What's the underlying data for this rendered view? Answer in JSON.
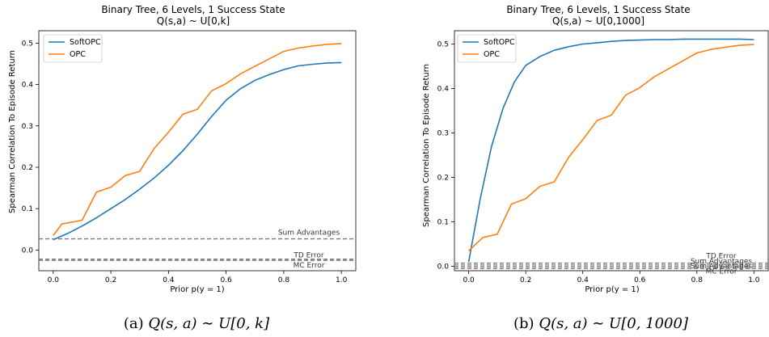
{
  "chart_data": [
    {
      "type": "line",
      "title": "Binary Tree, 6 Levels, 1 Success State",
      "subtitle": "Q(s,a) ~ U[0,k]",
      "xlabel": "Prior p(y = 1)",
      "ylabel": "Spearman Correlation To Episode Return",
      "xlim": [
        -0.05,
        1.05
      ],
      "ylim": [
        -0.05,
        0.53
      ],
      "xticks": [
        "0.0",
        "0.2",
        "0.4",
        "0.6",
        "0.8",
        "1.0"
      ],
      "yticks": [
        "0.0",
        "0.1",
        "0.2",
        "0.3",
        "0.4",
        "0.5"
      ],
      "legend_position": "top-left",
      "grid": false,
      "series": [
        {
          "name": "SoftOPC",
          "color": "#1f77b4",
          "x": [
            0.0,
            0.05,
            0.1,
            0.15,
            0.2,
            0.25,
            0.3,
            0.35,
            0.4,
            0.45,
            0.5,
            0.55,
            0.6,
            0.65,
            0.7,
            0.75,
            0.8,
            0.85,
            0.9,
            0.95,
            1.0
          ],
          "y": [
            0.025,
            0.04,
            0.058,
            0.078,
            0.1,
            0.122,
            0.147,
            0.174,
            0.205,
            0.24,
            0.28,
            0.323,
            0.362,
            0.39,
            0.41,
            0.424,
            0.436,
            0.445,
            0.449,
            0.452,
            0.453
          ]
        },
        {
          "name": "OPC",
          "color": "#ff7f0e",
          "x": [
            0.0,
            0.03,
            0.07,
            0.1,
            0.15,
            0.2,
            0.25,
            0.3,
            0.35,
            0.4,
            0.45,
            0.5,
            0.55,
            0.6,
            0.65,
            0.7,
            0.75,
            0.8,
            0.85,
            0.9,
            0.95,
            1.0
          ],
          "y": [
            0.035,
            0.063,
            0.068,
            0.072,
            0.14,
            0.152,
            0.18,
            0.19,
            0.245,
            0.285,
            0.328,
            0.34,
            0.385,
            0.402,
            0.426,
            0.444,
            0.462,
            0.48,
            0.488,
            0.493,
            0.497,
            0.499
          ]
        }
      ],
      "reference_lines": [
        {
          "label": "Sum Advantages",
          "y": 0.027
        },
        {
          "label": "TD Error",
          "y": -0.022
        },
        {
          "label": "MC Error",
          "y": -0.025
        }
      ]
    },
    {
      "type": "line",
      "title": "Binary Tree, 6 Levels, 1 Success State",
      "subtitle": "Q(s,a) ~ U[0,1000]",
      "xlabel": "Prior p(y = 1)",
      "ylabel": "Spearman Correlation To Episode Return",
      "xlim": [
        -0.05,
        1.05
      ],
      "ylim": [
        -0.01,
        0.53
      ],
      "xticks": [
        "0.0",
        "0.2",
        "0.4",
        "0.6",
        "0.8",
        "1.0"
      ],
      "yticks": [
        "0.0",
        "0.1",
        "0.2",
        "0.3",
        "0.4",
        "0.5"
      ],
      "legend_position": "top-left",
      "grid": false,
      "series": [
        {
          "name": "SoftOPC",
          "color": "#1f77b4",
          "x": [
            0.0,
            0.04,
            0.08,
            0.12,
            0.16,
            0.2,
            0.25,
            0.3,
            0.35,
            0.4,
            0.45,
            0.5,
            0.55,
            0.6,
            0.65,
            0.7,
            0.75,
            0.8,
            0.85,
            0.9,
            0.95,
            1.0
          ],
          "y": [
            0.01,
            0.15,
            0.27,
            0.355,
            0.415,
            0.452,
            0.472,
            0.486,
            0.494,
            0.5,
            0.503,
            0.506,
            0.508,
            0.509,
            0.51,
            0.51,
            0.511,
            0.511,
            0.511,
            0.511,
            0.511,
            0.51
          ]
        },
        {
          "name": "OPC",
          "color": "#ff7f0e",
          "x": [
            0.0,
            0.05,
            0.1,
            0.15,
            0.2,
            0.25,
            0.3,
            0.35,
            0.4,
            0.45,
            0.5,
            0.55,
            0.6,
            0.65,
            0.7,
            0.75,
            0.8,
            0.85,
            0.9,
            0.95,
            1.0
          ],
          "y": [
            0.035,
            0.065,
            0.072,
            0.14,
            0.152,
            0.18,
            0.19,
            0.245,
            0.285,
            0.328,
            0.34,
            0.385,
            0.402,
            0.426,
            0.444,
            0.462,
            0.48,
            0.488,
            0.493,
            0.497,
            0.499
          ]
        }
      ],
      "reference_lines": [
        {
          "label": "TD Error",
          "y": 0.007
        },
        {
          "label": "Sum Advantages",
          "y": 0.003
        },
        {
          "label": "Sum Advantages",
          "y": -0.001
        },
        {
          "label": "MC Error",
          "y": -0.005
        }
      ]
    }
  ],
  "captions": [
    {
      "prefix": "(a) ",
      "formula": "Q(s, a) ∼ U[0, k]"
    },
    {
      "prefix": "(b) ",
      "formula": "Q(s, a) ∼ U[0, 1000]"
    }
  ]
}
